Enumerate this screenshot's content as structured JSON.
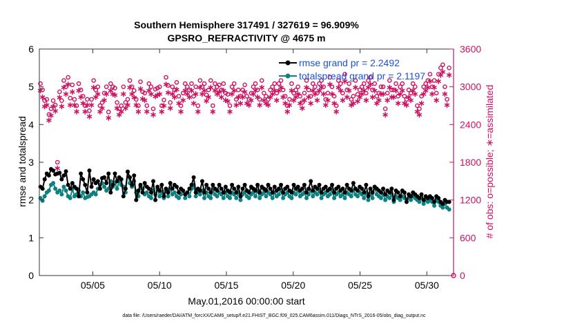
{
  "chart_data": {
    "type": "line",
    "title_line1": "Southern Hemisphere 317491 / 327619 = 96.909%",
    "title_line2": "GPSRO_REFRACTIVITY @ 4675 m",
    "xlabel": "May.01,2016 00:00:00 start",
    "ylabel_left": "rmse and totalspread",
    "ylabel_right": "# of obs: o=possible; ∗=assimilated",
    "footer": "data file: /Users/raeder/DAI/ATM_forcXX/CAM6_setup/f.e21.FHIST_BGC.f09_025.CAM6assim.011/Diags_NTrS_2016-05/obs_diag_output.nc",
    "xlim": [
      1,
      32
    ],
    "ylim_left": [
      0,
      6
    ],
    "ylim_right": [
      0,
      3600
    ],
    "x_ticks": [
      5,
      10,
      15,
      20,
      25,
      30
    ],
    "x_tick_labels": [
      "05/05",
      "05/10",
      "05/15",
      "05/20",
      "05/25",
      "05/30"
    ],
    "y_ticks_left": [
      "0",
      "1",
      "2",
      "3",
      "4",
      "5",
      "6"
    ],
    "y_ticks_right": [
      "0",
      "600",
      "1200",
      "1800",
      "2400",
      "3000",
      "3600"
    ],
    "legend_placement": "top-right",
    "grid": false,
    "colors": {
      "rmse": "#000000",
      "spread": "#0f8080",
      "obs": "#cc1060",
      "legend_text": "#1a4fd8"
    },
    "series": [
      {
        "name": "rmse grand pr = 2.2492",
        "axis": "left",
        "values": [
          2.35,
          2.3,
          2.55,
          2.7,
          2.65,
          2.82,
          2.78,
          2.68,
          2.7,
          2.72,
          2.55,
          2.65,
          2.76,
          2.4,
          2.3,
          2.45,
          2.35,
          2.3,
          2.1,
          2.7,
          2.55,
          2.4,
          2.2,
          2.78,
          2.35,
          2.55,
          2.45,
          2.5,
          2.3,
          2.58,
          2.6,
          2.45,
          2.7,
          2.2,
          2.4,
          2.7,
          2.5,
          2.6,
          2.55,
          2.1,
          2.3,
          2.75,
          2.6,
          2.4,
          2.65,
          2.0,
          2.25,
          2.4,
          2.2,
          2.45,
          2.35,
          2.3,
          2.2,
          2.5,
          2.0,
          2.35,
          2.25,
          2.4,
          2.1,
          2.3,
          2.2,
          2.45,
          2.3,
          2.4,
          2.35,
          2.2,
          2.3,
          2.25,
          2.15,
          2.2,
          2.3,
          2.4,
          2.6,
          2.2,
          2.3,
          2.25,
          2.5,
          2.2,
          2.4,
          2.3,
          2.2,
          2.4,
          2.3,
          2.25,
          2.4,
          2.3,
          2.2,
          2.35,
          2.25,
          2.2,
          2.4,
          2.3,
          2.2,
          2.35,
          2.1,
          2.3,
          2.4,
          2.25,
          2.2,
          2.35,
          2.3,
          2.25,
          2.4,
          2.2,
          2.35,
          2.3,
          2.25,
          2.4,
          2.3,
          2.2,
          2.35,
          2.25,
          2.3,
          2.4,
          2.2,
          2.3,
          2.35,
          2.25,
          2.2,
          2.4,
          2.3,
          2.35,
          2.25,
          2.3,
          2.4,
          2.2,
          2.3,
          2.5,
          2.25,
          2.35,
          2.3,
          2.4,
          2.2,
          2.3,
          2.35,
          2.25,
          2.3,
          2.4,
          2.2,
          2.3,
          2.35,
          2.25,
          2.3,
          2.2,
          2.4,
          2.3,
          2.25,
          2.45,
          2.3,
          2.25,
          2.35,
          2.3,
          2.2,
          2.4,
          2.1,
          2.3,
          2.2,
          2.35,
          2.3,
          2.25,
          2.2,
          2.3,
          2.15,
          2.25,
          2.2,
          2.3,
          2.0,
          2.25,
          2.2,
          2.1,
          2.25,
          2.2,
          1.95,
          2.15,
          2.1,
          2.2,
          2.15,
          2.1,
          2.05,
          2.15,
          2.0,
          2.1,
          2.05,
          2.1,
          2.05,
          1.95,
          2.1,
          2.05,
          1.95,
          1.9,
          2.0,
          1.95,
          1.95
        ]
      },
      {
        "name": "totalspread grand pr = 2.1197",
        "axis": "left",
        "values": [
          2.05,
          1.98,
          2.1,
          2.2,
          2.25,
          2.4,
          2.45,
          2.3,
          2.2,
          2.25,
          2.15,
          2.35,
          2.25,
          2.1,
          2.05,
          2.3,
          2.1,
          2.15,
          2.25,
          2.1,
          2.2,
          2.05,
          2.08,
          2.1,
          2.15,
          2.2,
          2.15,
          2.3,
          2.4,
          2.45,
          2.35,
          2.25,
          2.3,
          2.5,
          2.35,
          2.45,
          2.3,
          2.5,
          2.4,
          2.35,
          2.2,
          2.75,
          2.45,
          2.35,
          2.5,
          2.2,
          2.1,
          2.35,
          2.3,
          2.15,
          2.2,
          2.1,
          2.05,
          2.25,
          2.15,
          2.3,
          2.1,
          2.2,
          2.05,
          2.25,
          2.1,
          2.3,
          2.15,
          2.2,
          2.1,
          2.05,
          2.15,
          2.25,
          2.05,
          2.2,
          2.1,
          2.3,
          2.4,
          2.1,
          2.2,
          2.15,
          2.25,
          2.05,
          2.2,
          2.1,
          2.05,
          2.25,
          2.15,
          2.1,
          2.2,
          2.15,
          2.05,
          2.2,
          2.1,
          2.05,
          2.2,
          2.15,
          2.05,
          2.2,
          2.0,
          2.15,
          2.2,
          2.1,
          2.05,
          2.15,
          2.2,
          2.1,
          2.25,
          2.05,
          2.15,
          2.2,
          2.1,
          2.2,
          2.15,
          2.05,
          2.2,
          2.1,
          2.15,
          2.25,
          2.05,
          2.15,
          2.2,
          2.1,
          2.05,
          2.2,
          2.15,
          2.25,
          2.1,
          2.15,
          2.2,
          2.05,
          2.15,
          2.25,
          2.1,
          2.2,
          2.15,
          2.25,
          2.05,
          2.15,
          2.2,
          2.1,
          2.15,
          2.25,
          2.05,
          2.15,
          2.2,
          2.1,
          2.15,
          2.05,
          2.2,
          2.15,
          2.1,
          2.25,
          2.15,
          2.1,
          2.2,
          2.15,
          2.05,
          2.2,
          2.0,
          2.15,
          2.05,
          2.35,
          2.15,
          2.1,
          2.05,
          2.15,
          2.0,
          2.1,
          2.05,
          2.15,
          1.95,
          2.1,
          2.05,
          2.0,
          2.1,
          2.05,
          1.95,
          2.05,
          2.0,
          2.1,
          2.05,
          2.0,
          1.95,
          2.05,
          1.9,
          2.0,
          1.95,
          2.0,
          1.95,
          1.85,
          2.0,
          1.95,
          1.85,
          1.8,
          1.9,
          1.8,
          1.75
        ]
      },
      {
        "name": "possible",
        "axis": "right",
        "values": [
          3050,
          2950,
          2780,
          2800,
          2560,
          2650,
          2780,
          2710,
          1800,
          2920,
          2780,
          3100,
          3000,
          3150,
          2820,
          3030,
          2800,
          2700,
          3050,
          2950,
          2850,
          2700,
          2800,
          2620,
          2800,
          3100,
          2950,
          3000,
          2700,
          2750,
          2900,
          3000,
          2600,
          3050,
          3000,
          2980,
          2750,
          2650,
          2700,
          3000,
          2750,
          2800,
          3100,
          3000,
          2940,
          2800,
          2700,
          3080,
          2920,
          2900,
          2700,
          3050,
          3000,
          2650,
          2960,
          2980,
          3000,
          2700,
          2790,
          3150,
          3020,
          2750,
          3000,
          2950,
          3070,
          2850,
          2700,
          2900,
          3050,
          3000,
          2950,
          3050,
          2850,
          3000,
          2700,
          3100,
          3000,
          3050,
          2870,
          2950,
          3100,
          2700,
          3050,
          3000,
          3030,
          2950,
          3050,
          2900,
          2880,
          2700,
          3000,
          3050,
          2800,
          2950,
          2850,
          2950,
          3030,
          2850,
          2800,
          2900,
          3000,
          3050,
          2950,
          2800,
          3100,
          2900,
          2850,
          2800,
          2950,
          3000,
          3050,
          2900,
          3050,
          3100,
          2950,
          2850,
          2700,
          2800,
          3050,
          2900,
          2950,
          3000,
          2850,
          2750,
          2900,
          3100,
          2950,
          2850,
          3050,
          3000,
          2900,
          3050,
          3100,
          3000,
          2800,
          2900,
          3150,
          3000,
          2850,
          2700,
          3100,
          3050,
          2900,
          3200,
          2950,
          3050,
          2800,
          2850,
          3100,
          2880,
          2950,
          3000,
          3050,
          2900,
          3100,
          3150,
          2950,
          3050,
          2850,
          2900,
          3000,
          3000,
          2650,
          2900,
          3100,
          2950,
          2950,
          3050,
          2850,
          3000,
          3050,
          2850,
          2800,
          2950,
          2900,
          3050,
          3000,
          2700,
          2650,
          2850,
          3000,
          3050,
          3100,
          3200,
          3000,
          3100,
          2900,
          3200,
          3300,
          3350,
          3000,
          2800,
          3300,
          3200,
          3400
        ]
      },
      {
        "name": "assimilated",
        "axis": "right",
        "values": [
          2950,
          2850,
          2700,
          2720,
          2480,
          2560,
          2700,
          2630,
          1720,
          2840,
          2700,
          3000,
          2900,
          3050,
          2720,
          2930,
          2720,
          2620,
          2950,
          2850,
          2750,
          2620,
          2720,
          2540,
          2720,
          3000,
          2850,
          2900,
          2620,
          2670,
          2800,
          2900,
          2520,
          2950,
          2900,
          2880,
          2670,
          2570,
          2620,
          2900,
          2670,
          2720,
          3000,
          2900,
          2840,
          2720,
          2620,
          2980,
          2820,
          2800,
          2620,
          2950,
          2900,
          2570,
          2860,
          2880,
          2900,
          2620,
          2710,
          3050,
          2920,
          2670,
          2900,
          2850,
          2970,
          2750,
          2620,
          2800,
          2950,
          2900,
          2850,
          2950,
          2750,
          2900,
          2620,
          3000,
          2900,
          2950,
          2790,
          2850,
          3000,
          2620,
          2950,
          2900,
          2930,
          2850,
          2950,
          2800,
          2780,
          2620,
          2900,
          2950,
          2720,
          2850,
          2750,
          2850,
          2930,
          2750,
          2720,
          2800,
          2900,
          2950,
          2850,
          2720,
          3000,
          2800,
          2750,
          2720,
          2850,
          2900,
          2950,
          2800,
          2950,
          3000,
          2850,
          2750,
          2620,
          2720,
          2950,
          2800,
          2850,
          2900,
          2750,
          2670,
          2800,
          3000,
          2850,
          2750,
          2950,
          2900,
          2800,
          2950,
          3000,
          2900,
          2720,
          2800,
          3050,
          2900,
          2750,
          2620,
          3000,
          2950,
          2800,
          3100,
          2850,
          2950,
          2720,
          2750,
          3000,
          2780,
          2850,
          2900,
          2950,
          2800,
          3000,
          3050,
          2850,
          2950,
          2750,
          2800,
          2900,
          2900,
          2570,
          2800,
          3000,
          2850,
          2850,
          2950,
          2750,
          2900,
          2950,
          2750,
          2720,
          2850,
          2800,
          2950,
          2900,
          2620,
          2570,
          2750,
          2900,
          2950,
          3000,
          3100,
          2900,
          3000,
          2800,
          3100,
          3200,
          3250,
          2900,
          2720,
          3200,
          3100,
          3300
        ]
      }
    ]
  }
}
